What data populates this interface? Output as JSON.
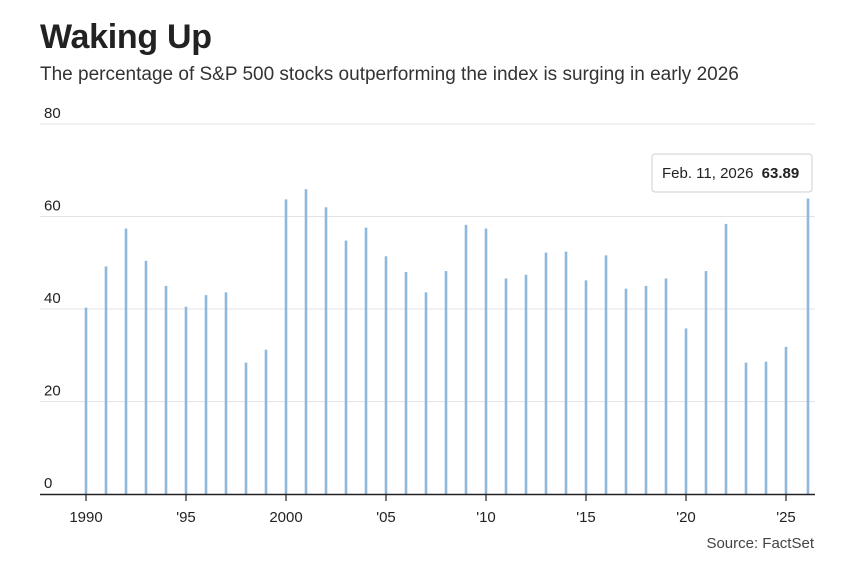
{
  "header": {
    "title": "Waking Up",
    "subtitle": "The percentage of S&P 500 stocks outperforming the index is surging in early 2026"
  },
  "footer": {
    "source": "Source: FactSet"
  },
  "tooltip": {
    "date": "Feb. 11, 2026",
    "value": "63.89"
  },
  "colors": {
    "bar": "#8fb9dc",
    "grid": "#e3e3e3",
    "axis": "#222222"
  },
  "chart_data": {
    "type": "bar",
    "title": "Waking Up",
    "subtitle": "The percentage of S&P 500 stocks outperforming the index is surging in early 2026",
    "xlabel": "",
    "ylabel": "",
    "ylim": [
      0,
      80
    ],
    "xlim": [
      1990,
      2026.1
    ],
    "grid": true,
    "y_ticks": [
      0,
      20,
      40,
      60,
      80
    ],
    "y_tick_labels": [
      "0",
      "20",
      "40",
      "60",
      "80"
    ],
    "x_ticks": [
      1990,
      1995,
      2000,
      2005,
      2010,
      2015,
      2020,
      2025
    ],
    "x_tick_labels": [
      "1990",
      "'95",
      "2000",
      "'05",
      "'10",
      "'15",
      "'20",
      "'25"
    ],
    "x": [
      1990,
      1991,
      1992,
      1993,
      1994,
      1995,
      1996,
      1997,
      1998,
      1999,
      2000,
      2001,
      2002,
      2003,
      2004,
      2005,
      2006,
      2007,
      2008,
      2009,
      2010,
      2011,
      2012,
      2013,
      2014,
      2015,
      2016,
      2017,
      2018,
      2019,
      2020,
      2021,
      2022,
      2023,
      2024,
      2025
    ],
    "values": [
      40.3,
      49.2,
      57.4,
      50.4,
      45.0,
      40.5,
      43.0,
      43.6,
      28.4,
      31.2,
      63.7,
      65.9,
      62.0,
      54.8,
      57.6,
      51.4,
      48.0,
      43.6,
      48.2,
      58.2,
      57.4,
      46.6,
      47.4,
      52.2,
      52.4,
      46.2,
      51.6,
      44.4,
      45.0,
      46.6,
      35.8,
      48.2,
      58.4,
      28.4,
      28.6,
      31.8
    ],
    "recent_x": [
      2026.1
    ],
    "recent_values": [
      63.89
    ],
    "annotations": [
      {
        "text": "Feb. 11, 2026 63.89",
        "x": 2026.1,
        "y": 63.89
      }
    ]
  }
}
